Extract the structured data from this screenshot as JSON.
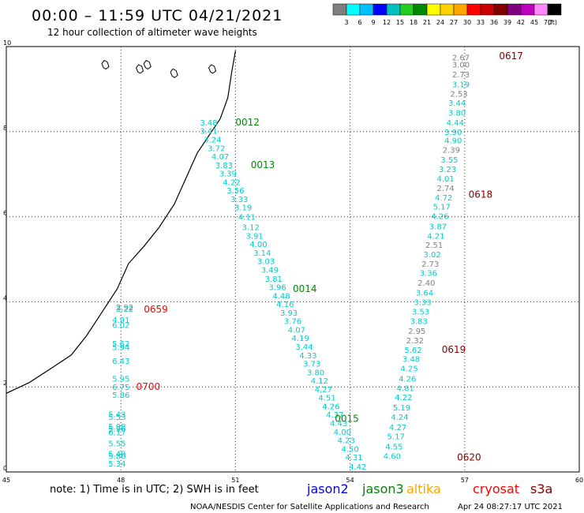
{
  "header": {
    "title": "00:00 – 11:59 UTC 04/21/2021",
    "subtitle": "12 hour collection of altimeter wave heights"
  },
  "colorbar": {
    "colors": [
      "#7f7f7f",
      "#00ffff",
      "#00c0ff",
      "#0000ff",
      "#00bfbf",
      "#22cc22",
      "#008800",
      "#ffff00",
      "#ffd200",
      "#ffa500",
      "#ff0000",
      "#c80000",
      "#800000",
      "#800080",
      "#c000c0",
      "#ff88ff",
      "#000000"
    ],
    "labels": [
      "3",
      "6",
      "9",
      "12",
      "15",
      "18",
      "21",
      "24",
      "27",
      "30",
      "33",
      "36",
      "39",
      "42",
      "45",
      "70",
      "(ft)"
    ]
  },
  "footer": {
    "note": "note: 1) Time is in UTC; 2) SWH is in feet",
    "satellites": [
      {
        "name": "jason2",
        "color": "#0000ff"
      },
      {
        "name": "jason3",
        "color": "#008800"
      },
      {
        "name": "altika",
        "color": "#ffa500"
      },
      {
        "name": "cryosat",
        "color": "#ff0000"
      },
      {
        "name": "s3a",
        "color": "#800000"
      }
    ],
    "credit": "NOAA/NESDIS Center for Satellite Applications and Research",
    "timestamp": "Apr 24 08:27:17 UTC 2021"
  },
  "chart_data": {
    "type": "scatter",
    "x_ticks": [
      45,
      48,
      51,
      54,
      57,
      60
    ],
    "y_ticks": [
      0,
      2,
      4,
      6,
      8,
      10
    ],
    "xlim": [
      45,
      60
    ],
    "ylim": [
      0,
      10
    ],
    "grid": true,
    "coastline": [
      [
        45,
        1.85
      ],
      [
        45.6,
        2.1
      ],
      [
        46.2,
        2.45
      ],
      [
        46.7,
        2.75
      ],
      [
        47.1,
        3.2
      ],
      [
        47.5,
        3.75
      ],
      [
        47.9,
        4.3
      ],
      [
        48.2,
        4.9
      ],
      [
        48.6,
        5.3
      ],
      [
        49.0,
        5.75
      ],
      [
        49.4,
        6.3
      ],
      [
        49.7,
        6.9
      ],
      [
        50.0,
        7.5
      ],
      [
        50.3,
        7.9
      ],
      [
        50.6,
        8.3
      ],
      [
        50.8,
        8.8
      ],
      [
        50.9,
        9.4
      ],
      [
        51.0,
        9.9
      ]
    ],
    "islands": [
      [
        47.5,
        9.6
      ],
      [
        48.4,
        9.5
      ],
      [
        48.6,
        9.6
      ],
      [
        49.3,
        9.4
      ],
      [
        50.3,
        9.5
      ]
    ],
    "time_labels": [
      {
        "text": "0012",
        "color": "#008800",
        "x": 51.0,
        "y": 8.22
      },
      {
        "text": "0013",
        "color": "#008800",
        "x": 51.4,
        "y": 7.22
      },
      {
        "text": "0014",
        "color": "#008800",
        "x": 52.5,
        "y": 4.3
      },
      {
        "text": "0015",
        "color": "#008800",
        "x": 53.6,
        "y": 1.25
      },
      {
        "text": "0617",
        "color": "#800000",
        "x": 57.9,
        "y": 9.78
      },
      {
        "text": "0618",
        "color": "#800000",
        "x": 57.1,
        "y": 6.52
      },
      {
        "text": "0619",
        "color": "#800000",
        "x": 56.4,
        "y": 2.88
      },
      {
        "text": "0620",
        "color": "#800000",
        "x": 56.8,
        "y": 0.34
      },
      {
        "text": "0659",
        "color": "#ff0000",
        "x": 48.6,
        "y": 3.82
      },
      {
        "text": "0700",
        "color": "#ff0000",
        "x": 48.4,
        "y": 2.0
      }
    ],
    "series": [
      {
        "name": "jason3",
        "points": [
          {
            "x": 50.3,
            "y": 8.22,
            "v": "3.48",
            "c": "#00cccc"
          },
          {
            "x": 50.3,
            "y": 8.02,
            "v": "3.41",
            "c": "#00cccc"
          },
          {
            "x": 50.4,
            "y": 7.82,
            "v": "3.24",
            "c": "#00cccc"
          },
          {
            "x": 50.5,
            "y": 7.62,
            "v": "3.72",
            "c": "#00cccc"
          },
          {
            "x": 50.6,
            "y": 7.42,
            "v": "4.07",
            "c": "#00cccc"
          },
          {
            "x": 50.7,
            "y": 7.22,
            "v": "3.83",
            "c": "#00cccc"
          },
          {
            "x": 50.8,
            "y": 7.02,
            "v": "3.39",
            "c": "#00cccc"
          },
          {
            "x": 50.9,
            "y": 6.82,
            "v": "4.22",
            "c": "#00cccc"
          },
          {
            "x": 51.0,
            "y": 6.62,
            "v": "3.56",
            "c": "#00cccc"
          },
          {
            "x": 51.1,
            "y": 6.42,
            "v": "3.33",
            "c": "#00cccc"
          },
          {
            "x": 51.2,
            "y": 6.22,
            "v": "3.19",
            "c": "#00cccc"
          },
          {
            "x": 51.3,
            "y": 6.0,
            "v": "4.11",
            "c": "#00cccc"
          },
          {
            "x": 51.4,
            "y": 5.76,
            "v": "3.12",
            "c": "#00cccc"
          },
          {
            "x": 51.5,
            "y": 5.56,
            "v": "3.91",
            "c": "#00cccc"
          },
          {
            "x": 51.6,
            "y": 5.36,
            "v": "4.00",
            "c": "#00cccc"
          },
          {
            "x": 51.7,
            "y": 5.16,
            "v": "3.14",
            "c": "#00cccc"
          },
          {
            "x": 51.8,
            "y": 4.96,
            "v": "3.03",
            "c": "#00cccc"
          },
          {
            "x": 51.9,
            "y": 4.76,
            "v": "3.49",
            "c": "#00cccc"
          },
          {
            "x": 52.0,
            "y": 4.55,
            "v": "3.81",
            "c": "#00cccc"
          },
          {
            "x": 52.1,
            "y": 4.35,
            "v": "3.96",
            "c": "#00cccc"
          },
          {
            "x": 52.2,
            "y": 4.15,
            "v": "4.48",
            "c": "#00cccc"
          },
          {
            "x": 52.3,
            "y": 3.95,
            "v": "4.16",
            "c": "#00cccc"
          },
          {
            "x": 52.4,
            "y": 3.75,
            "v": "3.93",
            "c": "#00cccc"
          },
          {
            "x": 52.5,
            "y": 3.55,
            "v": "3.76",
            "c": "#00cccc"
          },
          {
            "x": 52.6,
            "y": 3.35,
            "v": "4.07",
            "c": "#00cccc"
          },
          {
            "x": 52.7,
            "y": 3.15,
            "v": "4.19",
            "c": "#00cccc"
          },
          {
            "x": 52.8,
            "y": 2.95,
            "v": "3.44",
            "c": "#00cccc"
          },
          {
            "x": 52.9,
            "y": 2.75,
            "v": "4.33",
            "c": "#00cccc"
          },
          {
            "x": 53.0,
            "y": 2.55,
            "v": "3.73",
            "c": "#00cccc"
          },
          {
            "x": 53.1,
            "y": 2.35,
            "v": "3.80",
            "c": "#00cccc"
          },
          {
            "x": 53.2,
            "y": 2.15,
            "v": "4.12",
            "c": "#00cccc"
          },
          {
            "x": 53.3,
            "y": 1.95,
            "v": "4.27",
            "c": "#00cccc"
          },
          {
            "x": 53.4,
            "y": 1.75,
            "v": "4.51",
            "c": "#00cccc"
          },
          {
            "x": 53.5,
            "y": 1.55,
            "v": "4.26",
            "c": "#00cccc"
          },
          {
            "x": 53.6,
            "y": 1.35,
            "v": "4.37",
            "c": "#00cccc"
          },
          {
            "x": 53.7,
            "y": 1.15,
            "v": "4.43",
            "c": "#00cccc"
          },
          {
            "x": 53.8,
            "y": 0.95,
            "v": "4.00",
            "c": "#00cccc"
          },
          {
            "x": 53.9,
            "y": 0.75,
            "v": "4.23",
            "c": "#00cccc"
          },
          {
            "x": 54.0,
            "y": 0.55,
            "v": "4.50",
            "c": "#00cccc"
          },
          {
            "x": 54.1,
            "y": 0.35,
            "v": "4.31",
            "c": "#00cccc"
          },
          {
            "x": 54.2,
            "y": 0.13,
            "v": "4.42",
            "c": "#00cccc"
          }
        ]
      },
      {
        "name": "s3a",
        "points": [
          {
            "x": 56.9,
            "y": 9.75,
            "v": "2.67",
            "c": "#808080"
          },
          {
            "x": 56.9,
            "y": 9.58,
            "v": "3.00",
            "c": "#808080"
          },
          {
            "x": 56.9,
            "y": 9.35,
            "v": "2.73",
            "c": "#808080"
          },
          {
            "x": 56.9,
            "y": 9.12,
            "v": "3.19",
            "c": "#00cccc"
          },
          {
            "x": 56.85,
            "y": 8.9,
            "v": "2.53",
            "c": "#808080"
          },
          {
            "x": 56.8,
            "y": 8.68,
            "v": "3.44",
            "c": "#00cccc"
          },
          {
            "x": 56.8,
            "y": 8.45,
            "v": "3.80",
            "c": "#00cccc"
          },
          {
            "x": 56.75,
            "y": 8.22,
            "v": "4.44",
            "c": "#00cccc"
          },
          {
            "x": 56.7,
            "y": 8.0,
            "v": "3.90",
            "c": "#00cccc"
          },
          {
            "x": 56.7,
            "y": 7.8,
            "v": "4.90",
            "c": "#00cccc"
          },
          {
            "x": 56.65,
            "y": 7.58,
            "v": "2.39",
            "c": "#808080"
          },
          {
            "x": 56.6,
            "y": 7.35,
            "v": "3.55",
            "c": "#00cccc"
          },
          {
            "x": 56.55,
            "y": 7.12,
            "v": "3.23",
            "c": "#00cccc"
          },
          {
            "x": 56.5,
            "y": 6.9,
            "v": "4.01",
            "c": "#00cccc"
          },
          {
            "x": 56.5,
            "y": 6.68,
            "v": "2.74",
            "c": "#808080"
          },
          {
            "x": 56.45,
            "y": 6.46,
            "v": "4.72",
            "c": "#00cccc"
          },
          {
            "x": 56.4,
            "y": 6.24,
            "v": "5.17",
            "c": "#00cccc"
          },
          {
            "x": 56.35,
            "y": 6.02,
            "v": "4.26",
            "c": "#00cccc"
          },
          {
            "x": 56.3,
            "y": 5.78,
            "v": "3.87",
            "c": "#00cccc"
          },
          {
            "x": 56.25,
            "y": 5.56,
            "v": "4.21",
            "c": "#00cccc"
          },
          {
            "x": 56.2,
            "y": 5.34,
            "v": "2.51",
            "c": "#808080"
          },
          {
            "x": 56.15,
            "y": 5.12,
            "v": "3.02",
            "c": "#00cccc"
          },
          {
            "x": 56.1,
            "y": 4.9,
            "v": "2.73",
            "c": "#808080"
          },
          {
            "x": 56.05,
            "y": 4.68,
            "v": "3.36",
            "c": "#00cccc"
          },
          {
            "x": 56.0,
            "y": 4.45,
            "v": "2.40",
            "c": "#808080"
          },
          {
            "x": 55.95,
            "y": 4.22,
            "v": "3.64",
            "c": "#00cccc"
          },
          {
            "x": 55.9,
            "y": 4.0,
            "v": "3.33",
            "c": "#00cccc"
          },
          {
            "x": 55.85,
            "y": 3.78,
            "v": "3.53",
            "c": "#00cccc"
          },
          {
            "x": 55.8,
            "y": 3.55,
            "v": "3.83",
            "c": "#00cccc"
          },
          {
            "x": 55.75,
            "y": 3.32,
            "v": "2.95",
            "c": "#808080"
          },
          {
            "x": 55.7,
            "y": 3.1,
            "v": "2.32",
            "c": "#808080"
          },
          {
            "x": 55.65,
            "y": 2.88,
            "v": "5.62",
            "c": "#00cccc"
          },
          {
            "x": 55.6,
            "y": 2.66,
            "v": "3.48",
            "c": "#00cccc"
          },
          {
            "x": 55.55,
            "y": 2.44,
            "v": "4.25",
            "c": "#00cccc"
          },
          {
            "x": 55.5,
            "y": 2.2,
            "v": "4.26",
            "c": "#00cccc"
          },
          {
            "x": 55.45,
            "y": 1.98,
            "v": "4.81",
            "c": "#00cccc"
          },
          {
            "x": 55.4,
            "y": 1.76,
            "v": "4.22",
            "c": "#00cccc"
          },
          {
            "x": 55.35,
            "y": 1.52,
            "v": "5.19",
            "c": "#00cccc"
          },
          {
            "x": 55.3,
            "y": 1.3,
            "v": "4.24",
            "c": "#00cccc"
          },
          {
            "x": 55.25,
            "y": 1.06,
            "v": "4.27",
            "c": "#00cccc"
          },
          {
            "x": 55.2,
            "y": 0.84,
            "v": "5.17",
            "c": "#00cccc"
          },
          {
            "x": 55.15,
            "y": 0.6,
            "v": "4.55",
            "c": "#00cccc"
          },
          {
            "x": 55.1,
            "y": 0.38,
            "v": "4.60",
            "c": "#00cccc"
          }
        ]
      },
      {
        "name": "cryosat",
        "points": [
          {
            "x": 48.1,
            "y": 3.88,
            "v": "2.92",
            "c": "#808080"
          },
          {
            "x": 48.1,
            "y": 3.84,
            "v": "3.22",
            "c": "#00cccc"
          },
          {
            "x": 48.0,
            "y": 3.58,
            "v": "4.91",
            "c": "#00cccc"
          },
          {
            "x": 48.0,
            "y": 3.46,
            "v": "6.02",
            "c": "#00cccc"
          },
          {
            "x": 48.0,
            "y": 3.02,
            "v": "5.62",
            "c": "#00cccc"
          },
          {
            "x": 48.0,
            "y": 2.94,
            "v": "5.94",
            "c": "#00cccc"
          },
          {
            "x": 48.0,
            "y": 2.62,
            "v": "6.43",
            "c": "#00cccc"
          },
          {
            "x": 48.0,
            "y": 2.2,
            "v": "5.95",
            "c": "#00cccc"
          },
          {
            "x": 48.0,
            "y": 2.0,
            "v": "6.75",
            "c": "#00cccc"
          },
          {
            "x": 48.0,
            "y": 1.82,
            "v": "5.86",
            "c": "#00cccc"
          },
          {
            "x": 47.9,
            "y": 1.36,
            "v": "5.43",
            "c": "#00cccc"
          },
          {
            "x": 47.9,
            "y": 1.3,
            "v": "5.53",
            "c": "#00cccc"
          },
          {
            "x": 47.9,
            "y": 1.08,
            "v": "5.98",
            "c": "#00cccc"
          },
          {
            "x": 47.9,
            "y": 1.02,
            "v": "5.96",
            "c": "#00cccc"
          },
          {
            "x": 47.9,
            "y": 0.94,
            "v": "6.17",
            "c": "#00cccc"
          },
          {
            "x": 47.9,
            "y": 0.68,
            "v": "5.55",
            "c": "#00cccc"
          },
          {
            "x": 47.9,
            "y": 0.44,
            "v": "5.49",
            "c": "#00cccc"
          },
          {
            "x": 47.9,
            "y": 0.38,
            "v": "5.80",
            "c": "#00cccc"
          },
          {
            "x": 47.9,
            "y": 0.2,
            "v": "5.34",
            "c": "#00cccc"
          }
        ]
      }
    ]
  }
}
